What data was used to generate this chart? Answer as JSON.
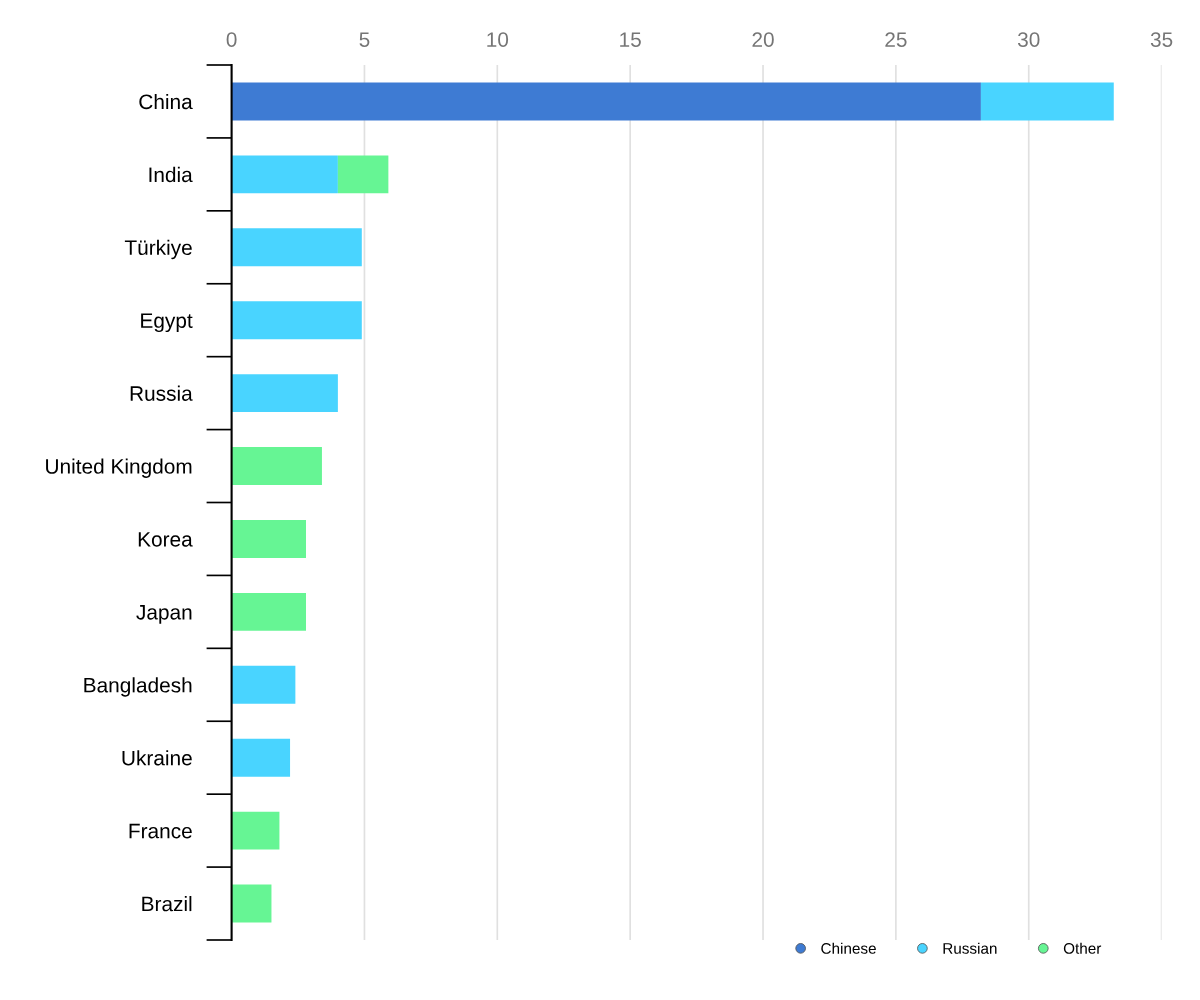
{
  "chart_data": {
    "type": "bar",
    "orientation": "horizontal",
    "stacked": true,
    "categories": [
      "China",
      "India",
      "Türkiye",
      "Egypt",
      "Russia",
      "United Kingdom",
      "Korea",
      "Japan",
      "Bangladesh",
      "Ukraine",
      "France",
      "Brazil"
    ],
    "series": [
      {
        "name": "Chinese",
        "color": "#3e7bd3",
        "values": [
          28.2,
          null,
          null,
          null,
          null,
          null,
          null,
          null,
          null,
          null,
          null,
          null
        ]
      },
      {
        "name": "Russian",
        "color": "#49d4ff",
        "values": [
          5.0,
          4.0,
          4.9,
          4.9,
          4.0,
          null,
          null,
          null,
          2.4,
          2.2,
          null,
          null
        ]
      },
      {
        "name": "Other",
        "color": "#66f594",
        "values": [
          null,
          1.9,
          null,
          null,
          null,
          3.4,
          2.8,
          2.8,
          null,
          null,
          1.8,
          1.5
        ]
      }
    ],
    "xlim": [
      0,
      35
    ],
    "xticks": [
      0,
      5,
      10,
      15,
      20,
      25,
      30,
      35
    ],
    "grid": "x",
    "legend": "bottom right"
  }
}
